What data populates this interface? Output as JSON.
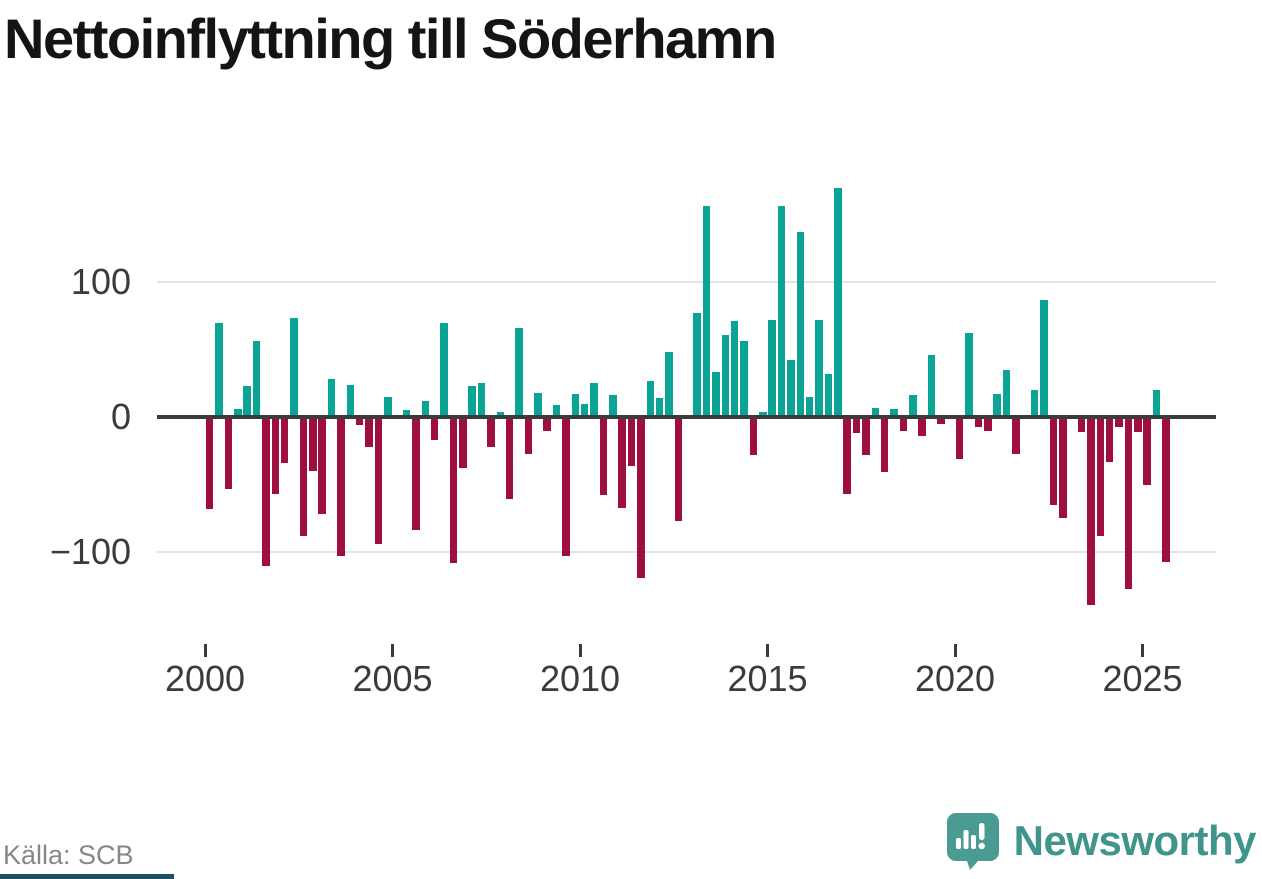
{
  "title": "Nettoinflyttning till Söderhamn",
  "source_label": "Källa: SCB",
  "brand": {
    "name": "Newsworthy",
    "icon": "speech-bubble-bar-chart-icon",
    "color": "#3f948b"
  },
  "colors": {
    "positive": "#0aa396",
    "negative": "#9e0e40",
    "axis": "#3b3b3b",
    "grid": "#e4e4e4",
    "footer_bar": "#1e4e63"
  },
  "chart_data": {
    "type": "bar",
    "title": "Nettoinflyttning till Söderhamn",
    "frequency": "quarterly",
    "legend": "none",
    "grid": "horizontal",
    "xlabel": "",
    "ylabel": "",
    "ylim": [
      -150,
      180
    ],
    "x_axis": {
      "tick_labels": [
        "2000",
        "2005",
        "2010",
        "2015",
        "2020",
        "2025"
      ],
      "tick_years": [
        2000,
        2005,
        2010,
        2015,
        2020,
        2025
      ]
    },
    "y_axis": {
      "tick_labels": [
        "100",
        "0",
        "−100"
      ],
      "gridline_values": [
        100,
        0,
        -100
      ]
    },
    "series": [
      {
        "year": 2000,
        "values": [
          -68,
          70,
          -53,
          6
        ]
      },
      {
        "year": 2001,
        "values": [
          23,
          56,
          -110,
          -57
        ]
      },
      {
        "year": 2002,
        "values": [
          -34,
          73,
          -88,
          -40
        ]
      },
      {
        "year": 2003,
        "values": [
          -72,
          28,
          -103,
          24
        ]
      },
      {
        "year": 2004,
        "values": [
          -6,
          -22,
          -94,
          15
        ]
      },
      {
        "year": 2005,
        "values": [
          0,
          5,
          -84,
          12
        ]
      },
      {
        "year": 2006,
        "values": [
          -17,
          70,
          -108,
          -38
        ]
      },
      {
        "year": 2007,
        "values": [
          23,
          25,
          -22,
          4
        ]
      },
      {
        "year": 2008,
        "values": [
          -61,
          66,
          -27,
          18
        ]
      },
      {
        "year": 2009,
        "values": [
          -10,
          9,
          -103,
          17
        ]
      },
      {
        "year": 2010,
        "values": [
          10,
          25,
          -58,
          16
        ]
      },
      {
        "year": 2011,
        "values": [
          -67,
          -36,
          -119,
          27
        ]
      },
      {
        "year": 2012,
        "values": [
          14,
          48,
          -77,
          0
        ]
      },
      {
        "year": 2013,
        "values": [
          77,
          156,
          33,
          61
        ]
      },
      {
        "year": 2014,
        "values": [
          71,
          56,
          -28,
          4
        ]
      },
      {
        "year": 2015,
        "values": [
          72,
          156,
          42,
          137
        ]
      },
      {
        "year": 2016,
        "values": [
          15,
          72,
          32,
          170
        ]
      },
      {
        "year": 2017,
        "values": [
          -57,
          -12,
          -28,
          7
        ]
      },
      {
        "year": 2018,
        "values": [
          -41,
          6,
          -10,
          16
        ]
      },
      {
        "year": 2019,
        "values": [
          -14,
          46,
          -5,
          0
        ]
      },
      {
        "year": 2020,
        "values": [
          -31,
          62,
          -7,
          -10
        ]
      },
      {
        "year": 2021,
        "values": [
          17,
          35,
          -27,
          0
        ]
      },
      {
        "year": 2022,
        "values": [
          20,
          87,
          -65,
          -75
        ]
      },
      {
        "year": 2023,
        "values": [
          0,
          -11,
          -139,
          -88
        ]
      },
      {
        "year": 2024,
        "values": [
          -33,
          -7,
          -127,
          -11
        ]
      },
      {
        "year": 2025,
        "values": [
          -50,
          20,
          -107
        ]
      }
    ]
  }
}
